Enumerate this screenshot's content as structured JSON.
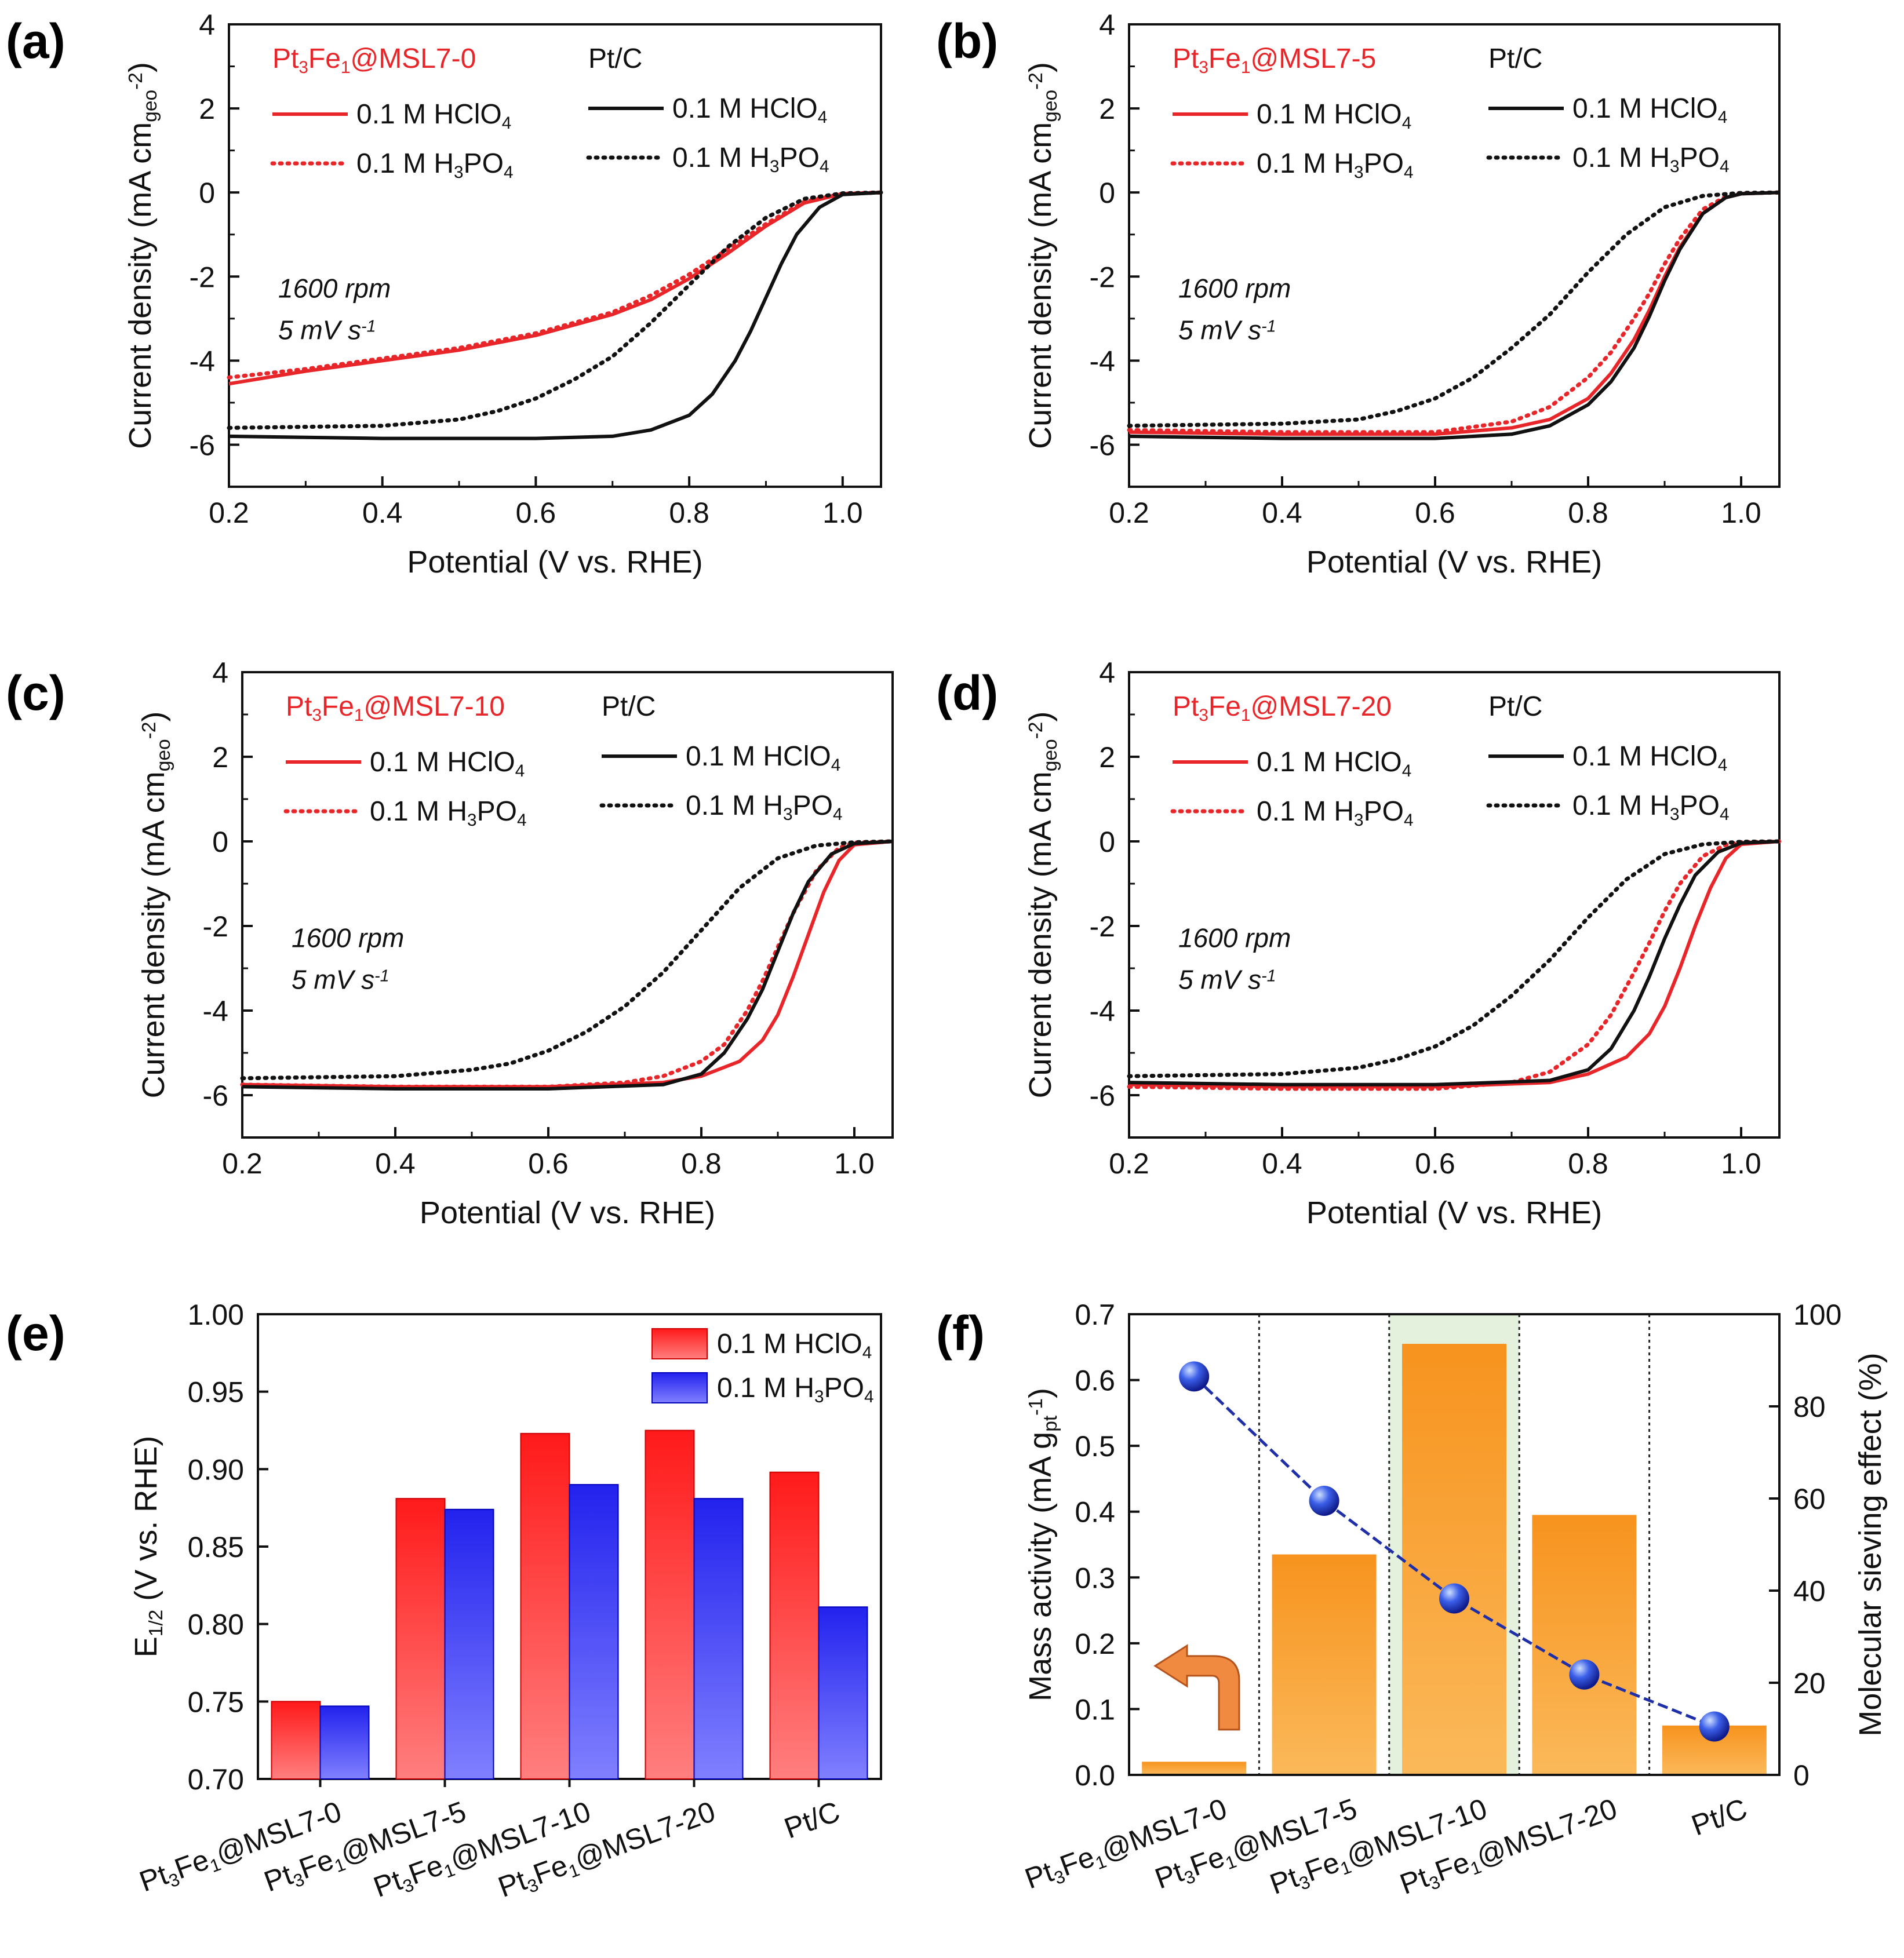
{
  "colors": {
    "red": "#e8262a",
    "black": "#111111",
    "blue": "#2a2ae0",
    "orange": "#f7931e",
    "dots": "#1f2fa8",
    "highlight": "#e3f1dd"
  },
  "potential_panels": [
    {
      "label": "(a)",
      "sample_legend": [
        "Pt",
        "3",
        "Fe",
        "1",
        "@MSL7-0"
      ],
      "ref_legend": "Pt/C",
      "legend_hclo4": [
        "0.1 M HClO",
        "4"
      ],
      "legend_h3po4": [
        "0.1 M H",
        "3",
        "PO",
        "4"
      ],
      "conditions": [
        "1600 rpm",
        "5 mV s",
        "-1"
      ]
    },
    {
      "label": "(b)",
      "sample_legend": [
        "Pt",
        "3",
        "Fe",
        "1",
        "@MSL7-5"
      ],
      "ref_legend": "Pt/C",
      "legend_hclo4": [
        "0.1 M HClO",
        "4"
      ],
      "legend_h3po4": [
        "0.1 M H",
        "3",
        "PO",
        "4"
      ],
      "conditions": [
        "1600 rpm",
        "5 mV s",
        "-1"
      ]
    },
    {
      "label": "(c)",
      "sample_legend": [
        "Pt",
        "3",
        "Fe",
        "1",
        "@MSL7-10"
      ],
      "ref_legend": "Pt/C",
      "legend_hclo4": [
        "0.1 M HClO",
        "4"
      ],
      "legend_h3po4": [
        "0.1 M H",
        "3",
        "PO",
        "4"
      ],
      "conditions": [
        "1600 rpm",
        "5 mV s",
        "-1"
      ]
    },
    {
      "label": "(d)",
      "sample_legend": [
        "Pt",
        "3",
        "Fe",
        "1",
        "@MSL7-20"
      ],
      "ref_legend": "Pt/C",
      "legend_hclo4": [
        "0.1 M HClO",
        "4"
      ],
      "legend_h3po4": [
        "0.1 M H",
        "3",
        "PO",
        "4"
      ],
      "conditions": [
        "1600 rpm",
        "5 mV s",
        "-1"
      ]
    }
  ],
  "axis_text": {
    "potential_xlabel": "Potential (V vs. RHE)",
    "current_ylabel": [
      "Current density (mA cm",
      "geo",
      "-2",
      ")"
    ],
    "e_ylabel": [
      "E",
      "1/2",
      " (V vs. RHE)"
    ],
    "mass_ylabel": [
      "Mass activity (mA g",
      "pt",
      "-1",
      ")"
    ],
    "sieving_ylabel": "Molecular sieving effect (%)"
  },
  "bar_panels": {
    "e_label": "(e)",
    "f_label": "(f)",
    "e_legend": [
      [
        "0.1 M HClO",
        "4"
      ],
      [
        "0.1 M H",
        "3",
        "PO",
        "4"
      ]
    ],
    "categories": [
      [
        "Pt",
        "3",
        "Fe",
        "1",
        "@MSL7-0"
      ],
      [
        "Pt",
        "3",
        "Fe",
        "1",
        "@MSL7-5"
      ],
      [
        "Pt",
        "3",
        "Fe",
        "1",
        "@MSL7-10"
      ],
      [
        "Pt",
        "3",
        "Fe",
        "1",
        "@MSL7-20"
      ],
      [
        "Pt/C"
      ]
    ]
  },
  "chart_data": [
    {
      "type": "line",
      "panel": "a",
      "xlim": [
        0.2,
        1.05
      ],
      "ylim": [
        -7,
        4
      ],
      "xticks": [
        0.2,
        0.4,
        0.6,
        0.8,
        1.0
      ],
      "yticks": [
        -6,
        -4,
        -2,
        0,
        2,
        4
      ],
      "series": [
        {
          "style": "solid",
          "color": "red",
          "x": [
            0.2,
            0.3,
            0.4,
            0.5,
            0.6,
            0.7,
            0.75,
            0.8,
            0.85,
            0.9,
            0.95,
            1.0,
            1.05
          ],
          "y": [
            -4.55,
            -4.25,
            -4.0,
            -3.75,
            -3.4,
            -2.9,
            -2.55,
            -2.05,
            -1.45,
            -0.8,
            -0.25,
            -0.03,
            0
          ]
        },
        {
          "style": "dotted",
          "color": "red",
          "x": [
            0.2,
            0.3,
            0.4,
            0.5,
            0.6,
            0.7,
            0.75,
            0.8,
            0.85,
            0.9,
            0.95,
            1.0,
            1.05
          ],
          "y": [
            -4.4,
            -4.2,
            -3.95,
            -3.7,
            -3.35,
            -2.85,
            -2.45,
            -1.95,
            -1.35,
            -0.75,
            -0.22,
            -0.03,
            0
          ]
        },
        {
          "style": "solid",
          "color": "black",
          "x": [
            0.2,
            0.4,
            0.6,
            0.7,
            0.75,
            0.8,
            0.83,
            0.86,
            0.88,
            0.9,
            0.92,
            0.94,
            0.97,
            1.0,
            1.05
          ],
          "y": [
            -5.8,
            -5.85,
            -5.85,
            -5.8,
            -5.65,
            -5.3,
            -4.8,
            -4.0,
            -3.3,
            -2.5,
            -1.7,
            -1.0,
            -0.35,
            -0.05,
            0
          ]
        },
        {
          "style": "dotted",
          "color": "black",
          "x": [
            0.2,
            0.4,
            0.5,
            0.55,
            0.6,
            0.65,
            0.7,
            0.75,
            0.8,
            0.85,
            0.9,
            0.95,
            1.0,
            1.05
          ],
          "y": [
            -5.6,
            -5.55,
            -5.4,
            -5.2,
            -4.9,
            -4.45,
            -3.9,
            -3.1,
            -2.2,
            -1.3,
            -0.6,
            -0.15,
            -0.02,
            0
          ]
        }
      ]
    },
    {
      "type": "line",
      "panel": "b",
      "xlim": [
        0.2,
        1.05
      ],
      "ylim": [
        -7,
        4
      ],
      "xticks": [
        0.2,
        0.4,
        0.6,
        0.8,
        1.0
      ],
      "yticks": [
        -6,
        -4,
        -2,
        0,
        2,
        4
      ],
      "series": [
        {
          "style": "solid",
          "color": "red",
          "x": [
            0.2,
            0.4,
            0.6,
            0.7,
            0.75,
            0.8,
            0.83,
            0.86,
            0.88,
            0.9,
            0.92,
            0.95,
            0.98,
            1.0,
            1.05
          ],
          "y": [
            -5.7,
            -5.75,
            -5.75,
            -5.6,
            -5.4,
            -4.9,
            -4.3,
            -3.5,
            -2.8,
            -2.0,
            -1.3,
            -0.5,
            -0.12,
            -0.03,
            0
          ]
        },
        {
          "style": "dotted",
          "color": "red",
          "x": [
            0.2,
            0.4,
            0.6,
            0.7,
            0.75,
            0.8,
            0.83,
            0.86,
            0.88,
            0.9,
            0.92,
            0.95,
            0.98,
            1.0,
            1.05
          ],
          "y": [
            -5.65,
            -5.7,
            -5.7,
            -5.45,
            -5.1,
            -4.4,
            -3.8,
            -3.0,
            -2.4,
            -1.7,
            -1.1,
            -0.4,
            -0.1,
            -0.02,
            0
          ]
        },
        {
          "style": "solid",
          "color": "black",
          "x": [
            0.2,
            0.4,
            0.6,
            0.7,
            0.75,
            0.8,
            0.83,
            0.86,
            0.88,
            0.9,
            0.92,
            0.95,
            0.98,
            1.0,
            1.05
          ],
          "y": [
            -5.8,
            -5.85,
            -5.85,
            -5.75,
            -5.55,
            -5.05,
            -4.5,
            -3.7,
            -2.95,
            -2.1,
            -1.35,
            -0.5,
            -0.12,
            -0.03,
            0
          ]
        },
        {
          "style": "dotted",
          "color": "black",
          "x": [
            0.2,
            0.4,
            0.5,
            0.55,
            0.6,
            0.65,
            0.7,
            0.75,
            0.8,
            0.85,
            0.9,
            0.95,
            1.0,
            1.05
          ],
          "y": [
            -5.55,
            -5.5,
            -5.4,
            -5.2,
            -4.9,
            -4.4,
            -3.7,
            -2.9,
            -1.9,
            -1.0,
            -0.35,
            -0.08,
            -0.01,
            0
          ]
        }
      ]
    },
    {
      "type": "line",
      "panel": "c",
      "xlim": [
        0.2,
        1.05
      ],
      "ylim": [
        -7,
        4
      ],
      "xticks": [
        0.2,
        0.4,
        0.6,
        0.8,
        1.0
      ],
      "yticks": [
        -6,
        -4,
        -2,
        0,
        2,
        4
      ],
      "series": [
        {
          "style": "solid",
          "color": "red",
          "x": [
            0.2,
            0.4,
            0.6,
            0.75,
            0.8,
            0.85,
            0.88,
            0.9,
            0.92,
            0.94,
            0.96,
            0.98,
            1.0,
            1.05
          ],
          "y": [
            -5.75,
            -5.8,
            -5.8,
            -5.7,
            -5.55,
            -5.2,
            -4.7,
            -4.1,
            -3.2,
            -2.2,
            -1.2,
            -0.45,
            -0.08,
            0
          ]
        },
        {
          "style": "dotted",
          "color": "red",
          "x": [
            0.2,
            0.4,
            0.6,
            0.7,
            0.75,
            0.8,
            0.83,
            0.86,
            0.88,
            0.9,
            0.92,
            0.95,
            0.98,
            1.0,
            1.05
          ],
          "y": [
            -5.75,
            -5.8,
            -5.8,
            -5.7,
            -5.55,
            -5.2,
            -4.8,
            -4.0,
            -3.3,
            -2.5,
            -1.7,
            -0.7,
            -0.15,
            -0.03,
            0
          ]
        },
        {
          "style": "solid",
          "color": "black",
          "x": [
            0.2,
            0.4,
            0.6,
            0.75,
            0.8,
            0.83,
            0.86,
            0.88,
            0.9,
            0.92,
            0.94,
            0.97,
            1.0,
            1.05
          ],
          "y": [
            -5.8,
            -5.85,
            -5.85,
            -5.75,
            -5.5,
            -5.0,
            -4.2,
            -3.5,
            -2.6,
            -1.7,
            -0.95,
            -0.3,
            -0.05,
            0
          ]
        },
        {
          "style": "dotted",
          "color": "black",
          "x": [
            0.2,
            0.4,
            0.5,
            0.55,
            0.6,
            0.65,
            0.7,
            0.75,
            0.8,
            0.85,
            0.9,
            0.95,
            1.0,
            1.05
          ],
          "y": [
            -5.6,
            -5.55,
            -5.4,
            -5.25,
            -4.95,
            -4.5,
            -3.9,
            -3.1,
            -2.1,
            -1.1,
            -0.4,
            -0.1,
            -0.02,
            0
          ]
        }
      ]
    },
    {
      "type": "line",
      "panel": "d",
      "xlim": [
        0.2,
        1.05
      ],
      "ylim": [
        -7,
        4
      ],
      "xticks": [
        0.2,
        0.4,
        0.6,
        0.8,
        1.0
      ],
      "yticks": [
        -6,
        -4,
        -2,
        0,
        2,
        4
      ],
      "series": [
        {
          "style": "solid",
          "color": "red",
          "x": [
            0.2,
            0.4,
            0.6,
            0.75,
            0.8,
            0.85,
            0.88,
            0.9,
            0.92,
            0.94,
            0.96,
            0.98,
            1.0,
            1.05
          ],
          "y": [
            -5.75,
            -5.8,
            -5.8,
            -5.7,
            -5.5,
            -5.1,
            -4.55,
            -3.9,
            -3.0,
            -2.0,
            -1.1,
            -0.4,
            -0.07,
            0
          ]
        },
        {
          "style": "dotted",
          "color": "red",
          "x": [
            0.2,
            0.4,
            0.6,
            0.7,
            0.75,
            0.8,
            0.83,
            0.86,
            0.88,
            0.9,
            0.92,
            0.95,
            0.98,
            1.0,
            1.05
          ],
          "y": [
            -5.8,
            -5.85,
            -5.85,
            -5.7,
            -5.45,
            -4.8,
            -4.1,
            -3.1,
            -2.4,
            -1.65,
            -1.0,
            -0.35,
            -0.08,
            -0.02,
            0
          ]
        },
        {
          "style": "solid",
          "color": "black",
          "x": [
            0.2,
            0.4,
            0.6,
            0.75,
            0.8,
            0.83,
            0.86,
            0.88,
            0.9,
            0.92,
            0.94,
            0.97,
            1.0,
            1.05
          ],
          "y": [
            -5.7,
            -5.75,
            -5.75,
            -5.65,
            -5.4,
            -4.9,
            -4.0,
            -3.2,
            -2.3,
            -1.5,
            -0.8,
            -0.25,
            -0.04,
            0
          ]
        },
        {
          "style": "dotted",
          "color": "black",
          "x": [
            0.2,
            0.4,
            0.5,
            0.55,
            0.6,
            0.65,
            0.7,
            0.75,
            0.8,
            0.85,
            0.9,
            0.95,
            1.0,
            1.05
          ],
          "y": [
            -5.55,
            -5.5,
            -5.35,
            -5.15,
            -4.85,
            -4.35,
            -3.65,
            -2.8,
            -1.8,
            -0.9,
            -0.3,
            -0.07,
            -0.01,
            0
          ]
        }
      ]
    },
    {
      "type": "bar",
      "panel": "e",
      "ylim": [
        0.7,
        1.0
      ],
      "yticks": [
        0.7,
        0.75,
        0.8,
        0.85,
        0.9,
        0.95,
        1.0
      ],
      "series": [
        {
          "legend_index": 0,
          "values": [
            0.75,
            0.881,
            0.923,
            0.925,
            0.898
          ]
        },
        {
          "legend_index": 1,
          "values": [
            0.747,
            0.874,
            0.89,
            0.881,
            0.811
          ]
        }
      ]
    },
    {
      "type": "bar",
      "panel": "f",
      "ylim": [
        0,
        0.7
      ],
      "yticks": [
        0.0,
        0.1,
        0.2,
        0.3,
        0.4,
        0.5,
        0.6,
        0.7
      ],
      "mass_activity": [
        0.02,
        0.335,
        0.655,
        0.395,
        0.075
      ],
      "y2lim": [
        0,
        100
      ],
      "y2ticks": [
        0,
        20,
        40,
        60,
        80,
        100
      ],
      "sieving_effect": [
        86.5,
        59.5,
        38.3,
        21.8,
        10.5
      ],
      "highlighted_category_index": 2
    }
  ]
}
